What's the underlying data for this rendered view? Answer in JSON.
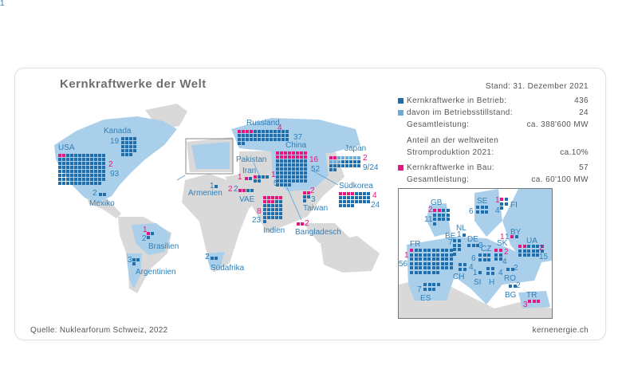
{
  "title": "Kernkraftwerke der Welt",
  "stand": "Stand: 31. Dezember 2021",
  "legend": {
    "operating_label": "Kernkraftwerke in Betrieb:",
    "operating_value": "436",
    "shutdown_label": "davon im Betriebsstillstand:",
    "shutdown_value": "24",
    "capacity_label": "Gesamtleistung:",
    "capacity_value": "ca. 388'600 MW",
    "share_label_1": "Anteil an der weltweiten",
    "share_label_2": "Stromproduktion 2021:",
    "share_value": "ca.10%",
    "construction_label": "Kernkraftwerke in Bau:",
    "construction_value": "57",
    "construction_capacity_label": "Gesamtleistung:",
    "construction_capacity_value": "ca. 60'100 MW"
  },
  "colors": {
    "operating": "#1f6fae",
    "shutdown": "#6aa9d8",
    "construction": "#e5167f",
    "nuclear_land": "#a9cfea",
    "land": "#d9d9d9"
  },
  "countries": [
    {
      "id": "usa",
      "name": "USA",
      "operating": 93,
      "construction": 2,
      "op_label": "93",
      "con_label": "2"
    },
    {
      "id": "kanada",
      "name": "Kanada",
      "operating": 19,
      "construction": 0,
      "op_label": "19"
    },
    {
      "id": "mexiko",
      "name": "Mexiko",
      "operating": 2,
      "construction": 0,
      "op_label": "2"
    },
    {
      "id": "brasilien",
      "name": "Brasilien",
      "operating": 2,
      "construction": 1,
      "op_label": "2",
      "con_label": "1"
    },
    {
      "id": "argentinien",
      "name": "Argentinien",
      "operating": 3,
      "construction": 0,
      "op_label": "3"
    },
    {
      "id": "suedafrika",
      "name": "Südafrika",
      "operating": 2,
      "construction": 0,
      "op_label": "2"
    },
    {
      "id": "armenien",
      "name": "Armenien",
      "operating": 1,
      "construction": 0,
      "op_label": "1"
    },
    {
      "id": "russland",
      "name": "Russland",
      "operating": 37,
      "construction": 4,
      "op_label": "37",
      "con_label": "4"
    },
    {
      "id": "china",
      "name": "China",
      "operating": 52,
      "construction": 16,
      "op_label": "52",
      "con_label": "16"
    },
    {
      "id": "pakistan",
      "name": "Pakistan",
      "operating": 5,
      "construction": 1,
      "op_label": "5",
      "con_label": "1"
    },
    {
      "id": "iran",
      "name": "Iran",
      "operating": 1,
      "construction": 1,
      "op_label": "1",
      "con_label": "1"
    },
    {
      "id": "vae",
      "name": "VAE",
      "operating": 2,
      "construction": 2,
      "op_label": "2",
      "con_label": "2"
    },
    {
      "id": "indien",
      "name": "Indien",
      "operating": 23,
      "construction": 8,
      "op_label": "23",
      "con_label": "8"
    },
    {
      "id": "bangladesch",
      "name": "Bangladesch",
      "operating": 0,
      "construction": 2,
      "con_label": "2"
    },
    {
      "id": "taiwan",
      "name": "Taiwan",
      "operating": 3,
      "construction": 2,
      "op_label": "3",
      "con_label": "2"
    },
    {
      "id": "japan",
      "name": "Japan",
      "operating": 24,
      "shutdown": 9,
      "construction": 2,
      "op_label": "9/24",
      "con_label": "2"
    },
    {
      "id": "suedkorea",
      "name": "Südkorea",
      "operating": 24,
      "construction": 4,
      "op_label": "24",
      "con_label": "4"
    }
  ],
  "europe": [
    {
      "id": "gb",
      "name": "GB",
      "operating": 11,
      "construction": 2,
      "op_label": "11",
      "con_label": "2"
    },
    {
      "id": "se",
      "name": "SE",
      "operating": 6,
      "construction": 0,
      "op_label": "6"
    },
    {
      "id": "fi",
      "name": "FI",
      "operating": 4,
      "construction": 1,
      "op_label": "4",
      "con_label": "1"
    },
    {
      "id": "nl",
      "name": "NL",
      "operating": 1,
      "construction": 0,
      "op_label": "1"
    },
    {
      "id": "be",
      "name": "BE",
      "operating": 7,
      "construction": 0,
      "op_label": "7"
    },
    {
      "id": "de",
      "name": "DE",
      "operating": 3,
      "construction": 0,
      "op_label": "3"
    },
    {
      "id": "fr",
      "name": "FR",
      "operating": 56,
      "construction": 1,
      "op_label": "56",
      "con_label": "1"
    },
    {
      "id": "ch",
      "name": "CH",
      "operating": 4,
      "construction": 0,
      "op_label": "4"
    },
    {
      "id": "cz",
      "name": "CZ",
      "operating": 6,
      "construction": 0,
      "op_label": "6"
    },
    {
      "id": "sk",
      "name": "SK",
      "operating": 4,
      "construction": 2,
      "op_label": "4",
      "con_label": "2"
    },
    {
      "id": "by",
      "name": "BY",
      "operating": 1,
      "construction": 1,
      "op_label": "1",
      "con_label": "1"
    },
    {
      "id": "ua",
      "name": "UA",
      "operating": 15,
      "construction": 2,
      "op_label": "15",
      "con_label": "2"
    },
    {
      "id": "si",
      "name": "SI",
      "operating": 1,
      "construction": 0,
      "op_label": "1"
    },
    {
      "id": "h",
      "name": "H",
      "operating": 4,
      "construction": 0,
      "op_label": "4"
    },
    {
      "id": "ro",
      "name": "RO",
      "operating": 2,
      "construction": 0,
      "op_label": "2"
    },
    {
      "id": "bg",
      "name": "BG",
      "operating": 2,
      "construction": 0,
      "op_label": "2"
    },
    {
      "id": "tr",
      "name": "TR",
      "operating": 0,
      "construction": 3,
      "con_label": "3"
    },
    {
      "id": "es",
      "name": "ES",
      "operating": 7,
      "construction": 0,
      "op_label": "7"
    }
  ],
  "footer": {
    "source": "Quelle: Nuklearforum Schweiz, 2022",
    "site": "kernenergie.ch"
  }
}
